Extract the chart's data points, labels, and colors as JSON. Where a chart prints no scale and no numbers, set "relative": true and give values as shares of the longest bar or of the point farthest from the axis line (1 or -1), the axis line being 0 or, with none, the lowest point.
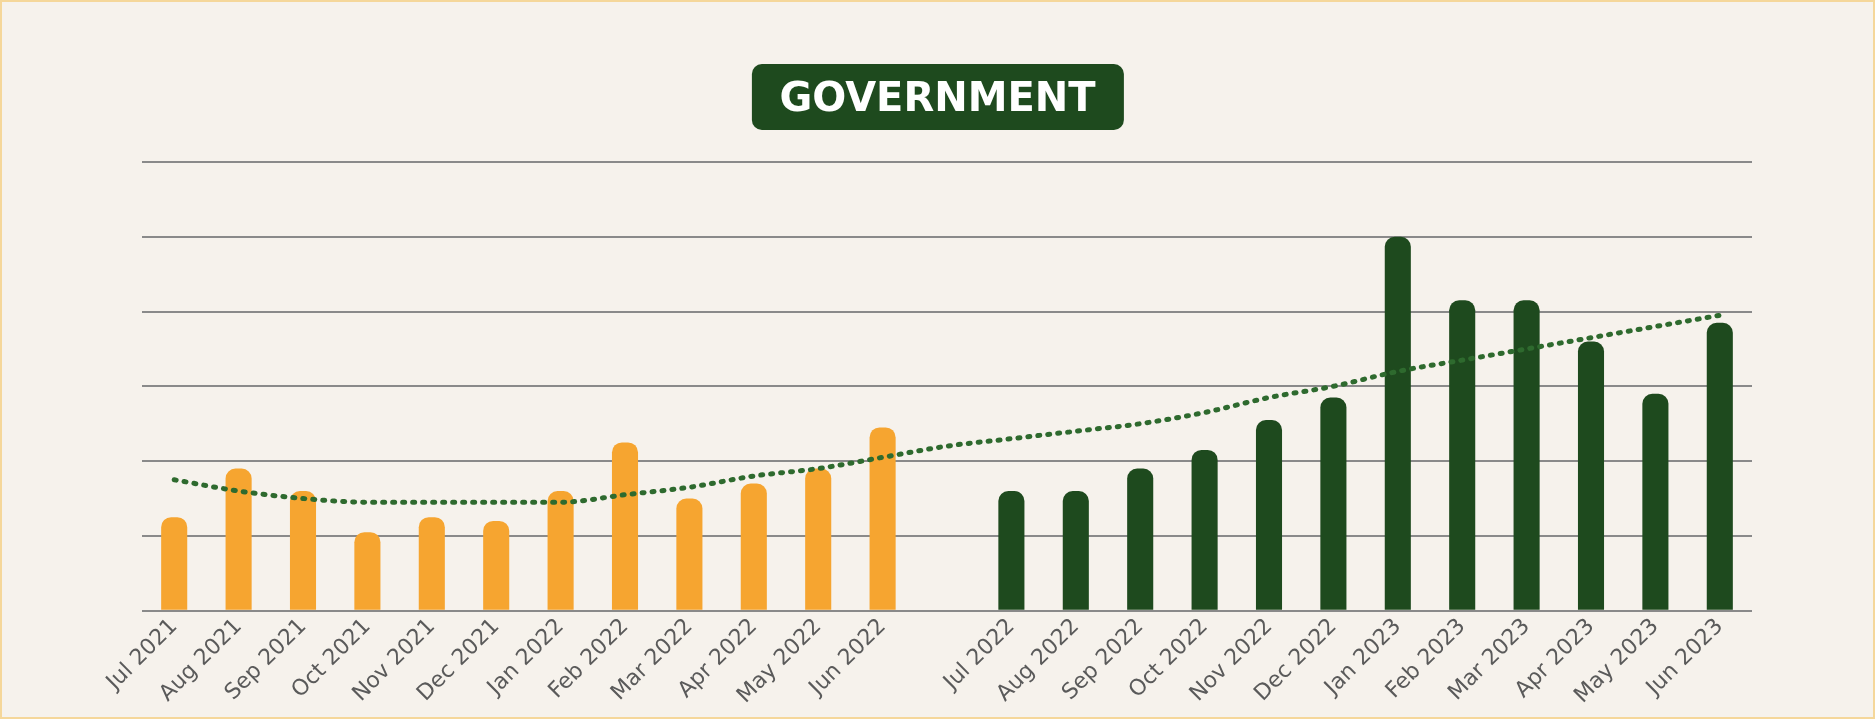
{
  "chart_data": {
    "type": "bar",
    "title": "GOVERNMENT",
    "relative": true,
    "grid": "y",
    "legend": false,
    "categories": [
      "Jul 2021",
      "Aug 2021",
      "Sep 2021",
      "Oct 2021",
      "Nov 2021",
      "Dec 2021",
      "Jan 2022",
      "Feb 2022",
      "Mar 2022",
      "Apr 2022",
      "May 2022",
      "Jun 2022",
      null,
      "Jul 2022",
      "Aug 2022",
      "Sep 2022",
      "Oct 2022",
      "Nov 2022",
      "Dec 2022",
      "Jan 2023",
      "Feb 2023",
      "Mar 2023",
      "Apr 2023",
      "May 2023",
      "Jun 2023"
    ],
    "series": [
      {
        "values": [
          0.25,
          0.38,
          0.32,
          0.21,
          0.25,
          0.24,
          0.32,
          0.45,
          0.3,
          0.34,
          0.38,
          0.49,
          null,
          0.32,
          0.32,
          0.38,
          0.43,
          0.51,
          0.57,
          1,
          0.83,
          0.83,
          0.72,
          0.58,
          0.77
        ],
        "colors": [
          "#f6a530",
          "#f6a530",
          "#f6a530",
          "#f6a530",
          "#f6a530",
          "#f6a530",
          "#f6a530",
          "#f6a530",
          "#f6a530",
          "#f6a530",
          "#f6a530",
          "#f6a530",
          "#f6a530",
          "#1e4a1e",
          "#1e4a1e",
          "#1e4a1e",
          "#1e4a1e",
          "#1e4a1e",
          "#1e4a1e",
          "#1e4a1e",
          "#1e4a1e",
          "#1e4a1e",
          "#1e4a1e",
          "#1e4a1e",
          "#1e4a1e"
        ]
      },
      {
        "type": "line",
        "color": "#2e6a2e",
        "line_style": "dotted",
        "marker": "none",
        "values": [
          0.35,
          0.32,
          0.3,
          0.29,
          0.29,
          0.29,
          0.29,
          0.31,
          0.33,
          0.36,
          0.38,
          0.41,
          0.44,
          0.46,
          0.48,
          0.5,
          0.53,
          0.57,
          0.6,
          0.64,
          0.67,
          0.7,
          0.73,
          0.76,
          0.79
        ]
      }
    ]
  }
}
